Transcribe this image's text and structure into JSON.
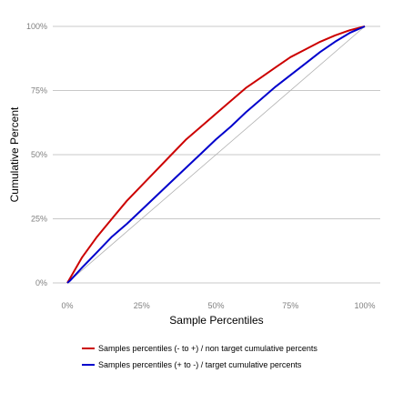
{
  "chart_data": {
    "type": "line",
    "title": "",
    "xlabel": "Sample Percentiles",
    "ylabel": "Cumulative Percent",
    "xlim": [
      0,
      1
    ],
    "ylim": [
      0,
      1
    ],
    "x_ticks": [
      "0%",
      "25%",
      "50%",
      "75%",
      "100%"
    ],
    "y_ticks": [
      "0%",
      "25%",
      "50%",
      "75%",
      "100%"
    ],
    "grid": "horizontal",
    "legend_position": "bottom",
    "reference_line": {
      "x": [
        0,
        1
      ],
      "y": [
        0,
        1
      ],
      "color": "#b0b0b0"
    },
    "x": [
      0,
      0.01,
      0.05,
      0.1,
      0.15,
      0.2,
      0.25,
      0.3,
      0.35,
      0.4,
      0.45,
      0.5,
      0.55,
      0.6,
      0.65,
      0.7,
      0.75,
      0.8,
      0.85,
      0.9,
      0.95,
      1
    ],
    "series": [
      {
        "name": "Samples percentiles (- to +) / non target cumulative percents",
        "color": "#cc0000",
        "values": [
          0,
          0.02,
          0.1,
          0.18,
          0.25,
          0.32,
          0.38,
          0.44,
          0.5,
          0.56,
          0.61,
          0.66,
          0.71,
          0.76,
          0.8,
          0.84,
          0.88,
          0.91,
          0.94,
          0.965,
          0.985,
          1
        ]
      },
      {
        "name": "Samples percentiles (+ to -) / target cumulative percents",
        "color": "#0000cc",
        "values": [
          0,
          0.01,
          0.06,
          0.12,
          0.18,
          0.23,
          0.285,
          0.34,
          0.395,
          0.45,
          0.505,
          0.56,
          0.61,
          0.665,
          0.715,
          0.765,
          0.81,
          0.855,
          0.9,
          0.94,
          0.975,
          1
        ]
      }
    ]
  }
}
